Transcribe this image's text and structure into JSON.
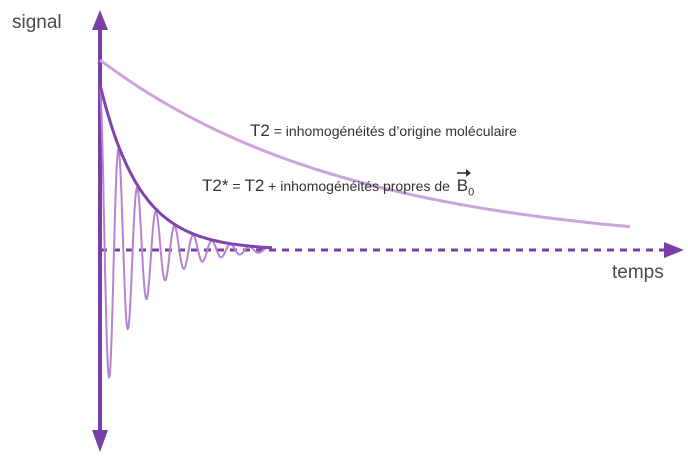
{
  "axes": {
    "y_label": "signal",
    "x_label": "temps"
  },
  "curves": {
    "t2_envelope": {
      "symbol": "T2",
      "text": " = inhomogénéités d’origine moléculaire"
    },
    "t2_star_envelope": {
      "symbol": "T2*",
      "mid_text": " = ",
      "symbol2": "T2",
      "text": " + inhomogénéités propres de ",
      "vector_symbol": "B",
      "vector_subscript": "0"
    }
  },
  "colors": {
    "axis": "#7a3fa6",
    "t2_curve": "#c9a4dd",
    "t2_star_curve": "#7d45ad",
    "oscillation": "#b583d1"
  },
  "model": {
    "t2_decay_rate": 2.1,
    "t2_star_decay_rate": 4.3,
    "oscillation_periods": 9,
    "oscillation_decay_rate": 4.3
  }
}
